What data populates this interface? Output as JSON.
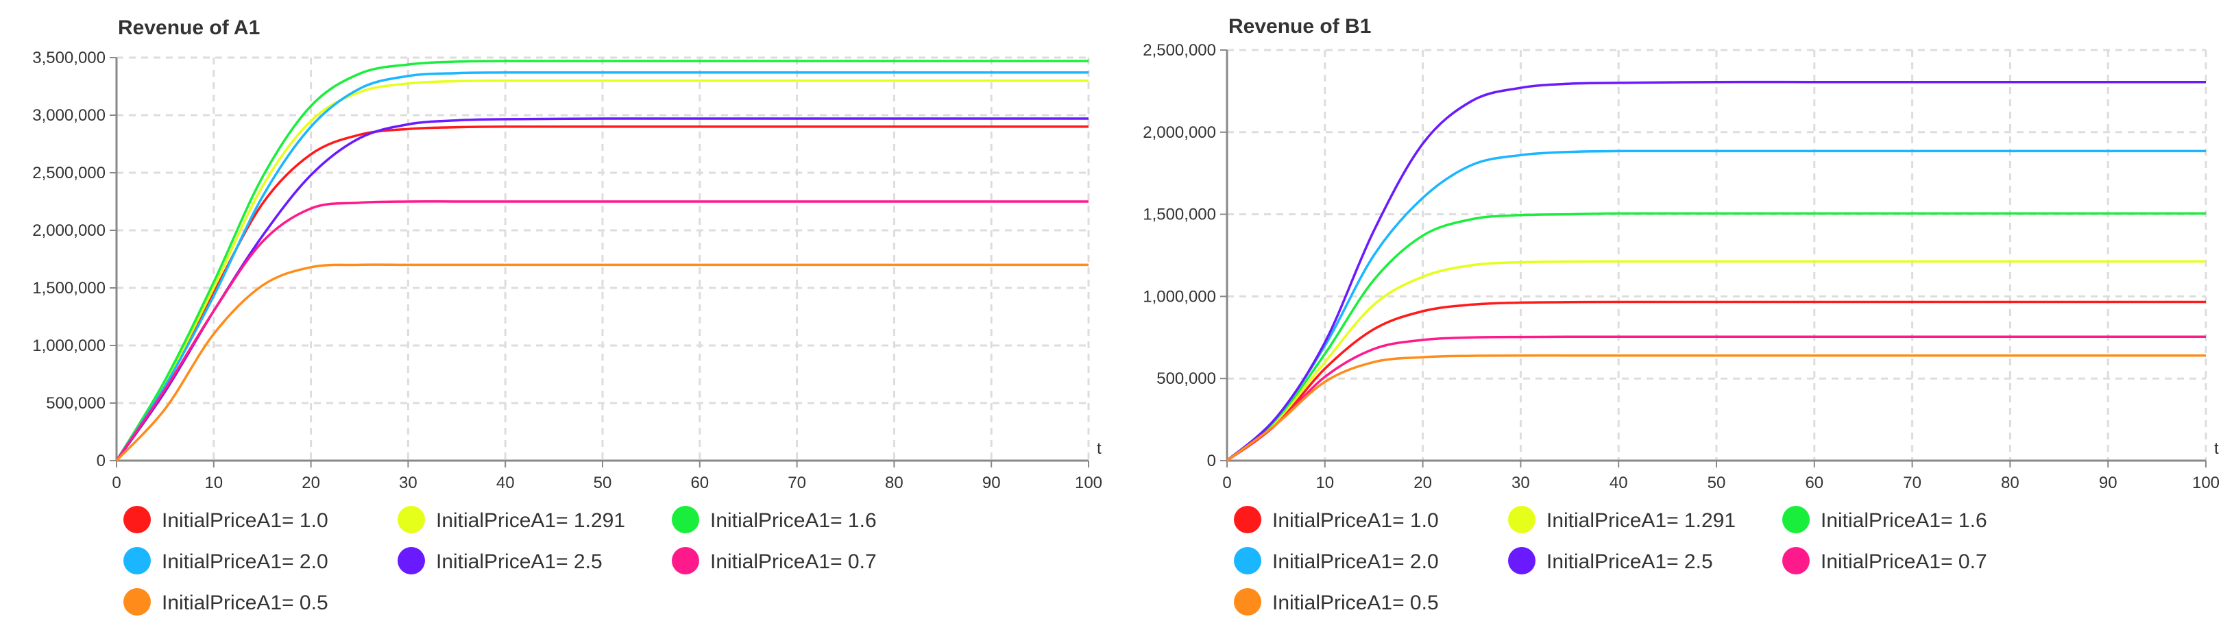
{
  "chart_data": [
    {
      "type": "line",
      "title": "Revenue of A1",
      "xlabel": "t",
      "ylabel": "",
      "xlim": [
        0,
        100
      ],
      "ylim": [
        0,
        3500000
      ],
      "x_ticks": [
        0,
        10,
        20,
        30,
        40,
        50,
        60,
        70,
        80,
        90,
        100
      ],
      "y_ticks": [
        0,
        500000,
        1000000,
        1500000,
        2000000,
        2500000,
        3000000,
        3500000
      ],
      "y_tick_labels": [
        "0",
        "500,000",
        "1,000,000",
        "1,500,000",
        "2,000,000",
        "2,500,000",
        "3,000,000",
        "3,500,000"
      ],
      "grid": true,
      "legend_position": "bottom",
      "series": [
        {
          "name": "InitialPriceA1= 1.0",
          "color": "#ff1a1a",
          "x": [
            0,
            5,
            10,
            15,
            20,
            25,
            30,
            35,
            40,
            50,
            60,
            70,
            80,
            90,
            100
          ],
          "y": [
            0,
            660000,
            1460000,
            2230000,
            2660000,
            2830000,
            2880000,
            2895000,
            2900000,
            2900000,
            2900000,
            2900000,
            2900000,
            2900000,
            2900000
          ]
        },
        {
          "name": "InitialPriceA1= 1.291",
          "color": "#e6ff1a",
          "x": [
            0,
            5,
            10,
            15,
            20,
            25,
            30,
            35,
            40,
            50,
            60,
            70,
            80,
            90,
            100
          ],
          "y": [
            0,
            680000,
            1500000,
            2380000,
            2950000,
            3200000,
            3275000,
            3295000,
            3300000,
            3300000,
            3300000,
            3300000,
            3300000,
            3300000,
            3300000
          ]
        },
        {
          "name": "InitialPriceA1= 1.6",
          "color": "#1aee3c",
          "x": [
            0,
            5,
            10,
            15,
            20,
            25,
            30,
            35,
            40,
            50,
            60,
            70,
            80,
            90,
            100
          ],
          "y": [
            0,
            700000,
            1550000,
            2460000,
            3080000,
            3360000,
            3440000,
            3465000,
            3470000,
            3470000,
            3470000,
            3470000,
            3470000,
            3470000,
            3470000
          ]
        },
        {
          "name": "InitialPriceA1= 2.0",
          "color": "#1ab6ff",
          "x": [
            0,
            5,
            10,
            15,
            20,
            25,
            30,
            35,
            40,
            50,
            60,
            70,
            80,
            90,
            100
          ],
          "y": [
            0,
            650000,
            1430000,
            2290000,
            2900000,
            3230000,
            3340000,
            3365000,
            3370000,
            3370000,
            3370000,
            3370000,
            3370000,
            3370000,
            3370000
          ]
        },
        {
          "name": "InitialPriceA1= 2.5",
          "color": "#6a1aff",
          "x": [
            0,
            5,
            10,
            15,
            20,
            25,
            30,
            35,
            40,
            50,
            60,
            70,
            80,
            90,
            100
          ],
          "y": [
            0,
            600000,
            1300000,
            1950000,
            2480000,
            2800000,
            2920000,
            2955000,
            2965000,
            2970000,
            2970000,
            2970000,
            2970000,
            2970000,
            2970000
          ]
        },
        {
          "name": "InitialPriceA1= 0.7",
          "color": "#ff1a8c",
          "x": [
            0,
            5,
            10,
            15,
            20,
            25,
            30,
            35,
            40,
            50,
            60,
            70,
            80,
            90,
            100
          ],
          "y": [
            0,
            620000,
            1300000,
            1900000,
            2190000,
            2240000,
            2250000,
            2250000,
            2250000,
            2250000,
            2250000,
            2250000,
            2250000,
            2250000,
            2250000
          ]
        },
        {
          "name": "InitialPriceA1= 0.5",
          "color": "#ff8c1a",
          "x": [
            0,
            5,
            10,
            15,
            20,
            25,
            30,
            35,
            40,
            50,
            60,
            70,
            80,
            90,
            100
          ],
          "y": [
            0,
            450000,
            1100000,
            1520000,
            1680000,
            1700000,
            1700000,
            1700000,
            1700000,
            1700000,
            1700000,
            1700000,
            1700000,
            1700000,
            1700000
          ]
        }
      ]
    },
    {
      "type": "line",
      "title": "Revenue of B1",
      "xlabel": "t",
      "ylabel": "",
      "xlim": [
        0,
        100
      ],
      "ylim": [
        0,
        2500000
      ],
      "x_ticks": [
        0,
        10,
        20,
        30,
        40,
        50,
        60,
        70,
        80,
        90,
        100
      ],
      "y_ticks": [
        0,
        500000,
        1000000,
        1500000,
        2000000,
        2500000
      ],
      "y_tick_labels": [
        "0",
        "500,000",
        "1,000,000",
        "1,500,000",
        "2,000,000",
        "2,500,000"
      ],
      "grid": true,
      "legend_position": "bottom",
      "series": [
        {
          "name": "InitialPriceA1= 1.0",
          "color": "#ff1a1a",
          "x": [
            0,
            5,
            10,
            15,
            20,
            25,
            30,
            35,
            40,
            50,
            60,
            70,
            80,
            90,
            100
          ],
          "y": [
            0,
            220000,
            560000,
            800000,
            910000,
            950000,
            962000,
            965000,
            966000,
            966000,
            966000,
            966000,
            966000,
            966000,
            966000
          ]
        },
        {
          "name": "InitialPriceA1= 1.291",
          "color": "#e6ff1a",
          "x": [
            0,
            5,
            10,
            15,
            20,
            25,
            30,
            35,
            40,
            50,
            60,
            70,
            80,
            90,
            100
          ],
          "y": [
            0,
            240000,
            600000,
            950000,
            1120000,
            1190000,
            1208000,
            1212000,
            1213000,
            1213000,
            1213000,
            1213000,
            1213000,
            1213000,
            1213000
          ]
        },
        {
          "name": "InitialPriceA1= 1.6",
          "color": "#1aee3c",
          "x": [
            0,
            5,
            10,
            15,
            20,
            25,
            30,
            35,
            40,
            50,
            60,
            70,
            80,
            90,
            100
          ],
          "y": [
            0,
            250000,
            650000,
            1100000,
            1370000,
            1470000,
            1495000,
            1500000,
            1505000,
            1505000,
            1505000,
            1505000,
            1505000,
            1505000,
            1505000
          ]
        },
        {
          "name": "InitialPriceA1= 2.0",
          "color": "#1ab6ff",
          "x": [
            0,
            5,
            10,
            15,
            20,
            25,
            30,
            35,
            40,
            50,
            60,
            70,
            80,
            90,
            100
          ],
          "y": [
            0,
            260000,
            700000,
            1250000,
            1600000,
            1800000,
            1860000,
            1880000,
            1885000,
            1885000,
            1885000,
            1885000,
            1885000,
            1885000,
            1885000
          ]
        },
        {
          "name": "InitialPriceA1= 2.5",
          "color": "#6a1aff",
          "x": [
            0,
            5,
            10,
            15,
            20,
            25,
            30,
            35,
            40,
            50,
            60,
            70,
            80,
            90,
            100
          ],
          "y": [
            0,
            260000,
            720000,
            1400000,
            1930000,
            2190000,
            2270000,
            2295000,
            2300000,
            2305000,
            2305000,
            2305000,
            2305000,
            2305000,
            2305000
          ]
        },
        {
          "name": "InitialPriceA1= 0.7",
          "color": "#ff1a8c",
          "x": [
            0,
            5,
            10,
            15,
            20,
            25,
            30,
            35,
            40,
            50,
            60,
            70,
            80,
            90,
            100
          ],
          "y": [
            0,
            220000,
            510000,
            680000,
            735000,
            750000,
            753000,
            754000,
            754000,
            754000,
            754000,
            754000,
            754000,
            754000,
            754000
          ]
        },
        {
          "name": "InitialPriceA1= 0.5",
          "color": "#ff8c1a",
          "x": [
            0,
            5,
            10,
            15,
            20,
            25,
            30,
            35,
            40,
            50,
            60,
            70,
            80,
            90,
            100
          ],
          "y": [
            0,
            220000,
            480000,
            600000,
            630000,
            638000,
            640000,
            640000,
            640000,
            640000,
            640000,
            640000,
            640000,
            640000,
            640000
          ]
        }
      ]
    }
  ]
}
